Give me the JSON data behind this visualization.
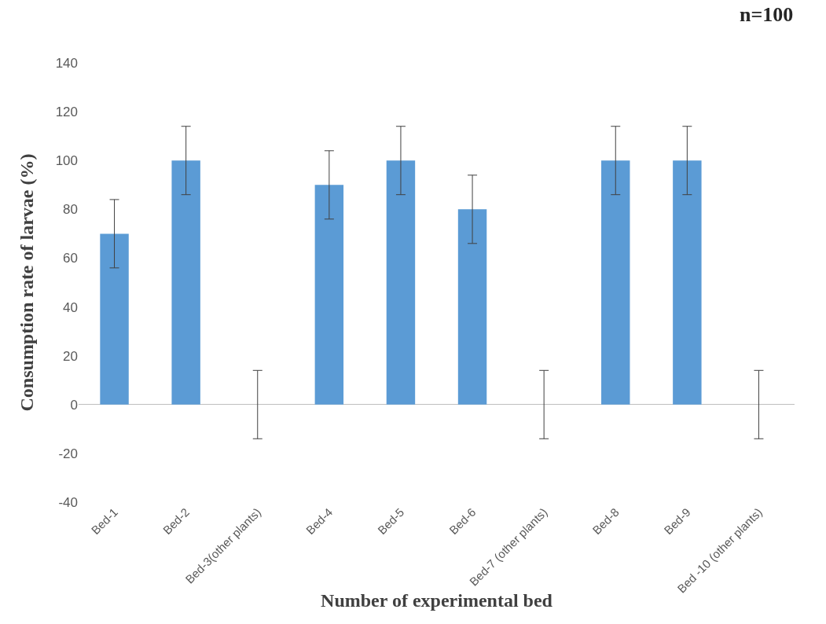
{
  "chart_data": {
    "type": "bar",
    "xlabel": "Number of experimental bed",
    "ylabel": "Consumption rate of larvae (%)",
    "categories": [
      "Bed-1",
      "Bed-2",
      "Bed-3(other plants)",
      "Bed-4",
      "Bed-5",
      "Bed-6",
      "Bed-7 (other plants)",
      "Bed-8",
      "Bed-9",
      "Bed -10 (other plants)"
    ],
    "values": [
      70,
      100,
      0,
      90,
      100,
      80,
      0,
      100,
      100,
      0
    ],
    "errors": [
      14,
      14,
      14,
      14,
      14,
      14,
      14,
      14,
      14,
      14
    ],
    "color": "#5b9bd5",
    "ylim": [
      -40,
      140
    ],
    "yticks": [
      -40,
      -20,
      0,
      20,
      40,
      60,
      80,
      100,
      120,
      140
    ],
    "annotations": [
      "n=100"
    ]
  }
}
